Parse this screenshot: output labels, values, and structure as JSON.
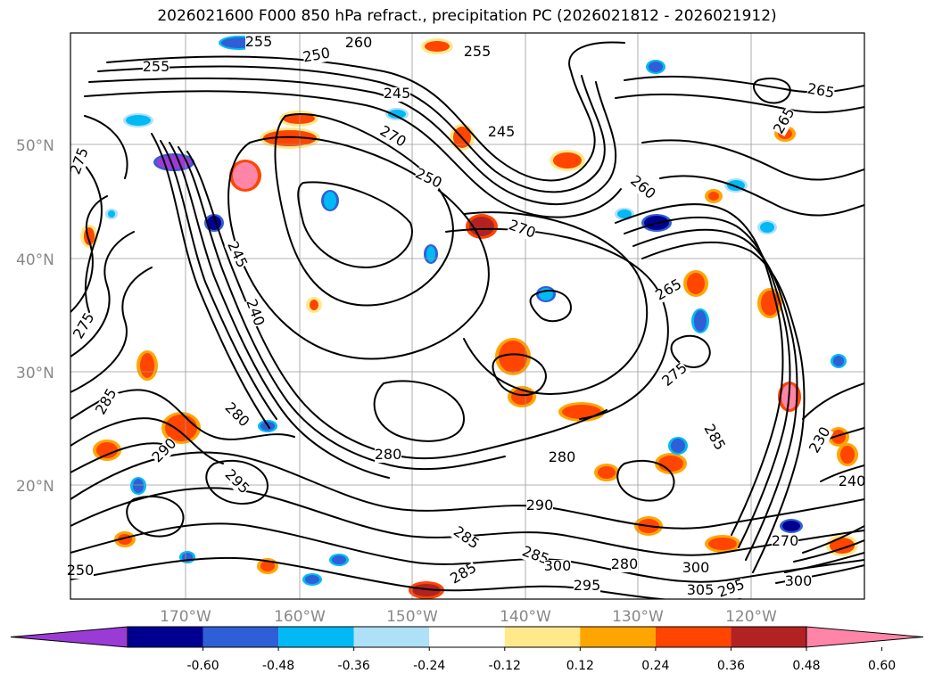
{
  "title": "2026021600 F000 850 hPa refract., precipitation PC (2026021812 - 2026021912)",
  "latitude_labels": [
    "50°N",
    "40°N",
    "30°N",
    "20°N"
  ],
  "longitude_labels": [
    "170°W",
    "160°W",
    "150°W",
    "140°W",
    "130°W",
    "120°W"
  ],
  "colorbar": {
    "ticks": [
      "-0.60",
      "-0.48",
      "-0.36",
      "-0.24",
      "-0.12",
      "0.12",
      "0.24",
      "0.36",
      "0.48",
      "0.60"
    ],
    "colors": [
      "#9b3bd6",
      "#000090",
      "#2f5fd6",
      "#00b9f5",
      "#aee0f8",
      "#ffffff",
      "#ffe98a",
      "#ffa500",
      "#ff4500",
      "#b22222",
      "#ff85a8"
    ]
  },
  "contour_labels": [
    "255",
    "260",
    "255",
    "250",
    "245",
    "245",
    "255",
    "270",
    "250",
    "265",
    "275",
    "245",
    "270",
    "240",
    "275",
    "265",
    "265",
    "280",
    "275",
    "290",
    "285",
    "280",
    "280",
    "285",
    "290",
    "295",
    "300",
    "295",
    "285",
    "280",
    "300",
    "305",
    "295",
    "300",
    "230",
    "240",
    "250",
    "285",
    "285",
    "270",
    "260"
  ],
  "precip_colors": {
    "light_yellow": "#ffe98a",
    "orange": "#ffa500",
    "red_orange": "#ff4500",
    "dark_red": "#b22222",
    "pink": "#ff85a8",
    "light_blue": "#aee0f8",
    "cyan": "#00b9f5",
    "blue": "#2f5fd6",
    "navy": "#000090",
    "purple": "#9b3bd6"
  }
}
